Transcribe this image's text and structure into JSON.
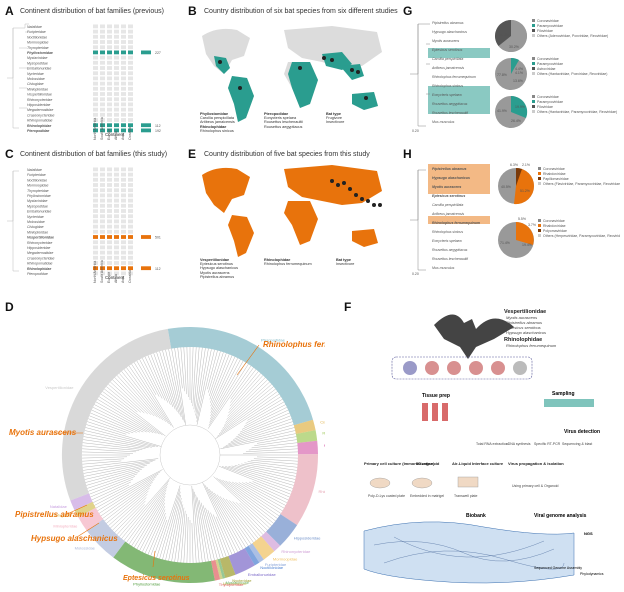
{
  "figure": {
    "panels": {
      "A": {
        "label": "A",
        "title": "Continent distribution of bat families (previous)"
      },
      "B": {
        "label": "B",
        "title": "Country distribution of six bat species from six different studies"
      },
      "C": {
        "label": "C",
        "title": "Continent distribution of bat families (this study)"
      },
      "E": {
        "label": "E",
        "title": "Country distribution of five bat species from this study"
      },
      "G": {
        "label": "G"
      },
      "H": {
        "label": "H"
      },
      "D": {
        "label": "D"
      },
      "F": {
        "label": "F"
      }
    },
    "panelA": {
      "families": [
        "Natalidae",
        "Furipteridae",
        "Noctilionidae",
        "Mormoopidae",
        "Thyropteridae",
        "Phyllostomidae",
        "Mystacinidae",
        "Myzopodidae",
        "Emballonuridae",
        "Nycteridae",
        "Molossidae",
        "Cistugidae",
        "Miniopteridae",
        "Vespertilionidae",
        "Rhinonycteridae",
        "Hipposideridae",
        "Megadermatidae",
        "Craseonycteridae",
        "Rhinopomatidae",
        "Rhinolophidae",
        "Pteropodidae"
      ],
      "highlight": [
        "Phyllostomidae",
        "Rhinolophidae",
        "Pteropodidae"
      ],
      "continents": [
        "North America",
        "South America",
        "Europe",
        "Africa",
        "Asia",
        "Oceania"
      ],
      "axis_label": "Continent",
      "count_label": "No. bat species",
      "counts": [
        "227",
        "112",
        "192"
      ]
    },
    "panelC": {
      "highlight": [
        "Vespertilionidae",
        "Rhinolophidae"
      ],
      "axis_label": "Continent",
      "count_label": "No. bat species",
      "counts": [
        "501",
        "112"
      ]
    },
    "panelB": {
      "legend": [
        {
          "family": "Phyllostomidae",
          "species": [
            "Carollia perspicillata",
            "Artibeus jamaicensis"
          ]
        },
        {
          "family": "Rhinolophidae",
          "species": [
            "Rhinolophus sinicus"
          ]
        },
        {
          "family": "Pteropodidae",
          "species": [
            "Eonycteris spelaea",
            "Rousettus leschenaultii",
            "Rousettus aegyptiacus"
          ]
        }
      ],
      "bat_type": "Bat type",
      "type_labels": [
        "Frugivore",
        "Insectivore"
      ],
      "color": "#2a9d8f"
    },
    "panelE": {
      "legend": [
        {
          "family": "Vespertilionidae",
          "species": [
            "Eptesicus serotinus",
            "Hypsugo alaschanicus",
            "Myotis aurascens",
            "Pipistrellus abramus"
          ]
        },
        {
          "family": "Rhinolophidae",
          "species": [
            "Rhinolophus ferrumequinum"
          ]
        }
      ],
      "bat_type": "Bat type",
      "type_labels": [
        "Insectivore"
      ],
      "color": "#e8730c"
    },
    "panelG": {
      "tree": [
        "Pipistrellus abramus",
        "Hypsugo alaschanicus",
        "Myotis aurascens",
        "Eptesicus serotinus",
        "Carollia perspicillata",
        "Artibeus jamaicensis",
        "Rhinolophus ferrumequinum",
        "Rhinolophus sinicus",
        "Eonycteris spelaea",
        "Rousettus aegyptiacus",
        "Rousettus leschenaultii",
        "Mus musculus"
      ],
      "scale": "0.20",
      "pies": [
        {
          "values": [
            "61.3%",
            "30.2%"
          ],
          "legend": [
            "Coronaviridae",
            "Paramyxoviridae",
            "Filoviridae",
            "Others (Adenoviridae, Poxviridae, Reoviridae)"
          ]
        },
        {
          "values": [
            "77.8%",
            "4.4%",
            "4.1%",
            "13.6%"
          ],
          "legend": [
            "Coronaviridae",
            "Paramyxoviridae",
            "Astroviridae",
            "Others (Hantaviridae, Poxviridae, Reoviridae)"
          ]
        },
        {
          "values": [
            "41.9%",
            "19.9%",
            "26.4%"
          ],
          "legend": [
            "Coronaviridae",
            "Paramyxoviridae",
            "Filoviridae",
            "Others (Hantaviridae, Paramyxoviridae, Reoviridae)"
          ]
        }
      ]
    },
    "panelH": {
      "highlight": [
        "Pipistrellus abramus",
        "Hypsugo alaschanicus",
        "Myotis aurascens",
        "Eptesicus serotinus",
        "Rhinolophus ferrumequinum"
      ],
      "scale": "0.20",
      "pies": [
        {
          "values": [
            "6.3%",
            "2.1%",
            "40.5%",
            "51.2%"
          ],
          "legend": [
            "Coronaviridae",
            "Rhabdoviridae",
            "Papillomaviridae",
            "Others (Flaviviridae, Paramyxoviridae, Reoviridae)"
          ]
        },
        {
          "values": [
            "5.5%",
            "3.7%",
            "71.4%",
            "19.4%"
          ],
          "legend": [
            "Coronaviridae",
            "Rhabdoviridae",
            "Polyomaviridae",
            "Others (Herpesviridae, Paramyxoviridae, Reoviridae)"
          ]
        }
      ]
    },
    "panelD": {
      "families": [
        "Pteropodidae",
        "Craseonycteridae",
        "Rhinopomatidae",
        "Megadermatidae",
        "Rhinolophidae",
        "Hipposideridae",
        "Rhinonycteridae",
        "Mormoopidae",
        "Furipteridae",
        "Noctilionidae",
        "Emballonuridae",
        "Nycteridae",
        "Mystacinidae",
        "Myzopodidae",
        "Thyropteridae",
        "Phyllostomidae",
        "Molossidae",
        "Miniopteridae",
        "Cistugidae",
        "Natalidae",
        "Vespertilionidae"
      ],
      "species": [
        "Rhinolophus ferrumequinum",
        "Myotis aurascens",
        "Pipistrellus abramus",
        "Hypsugo alaschanicus",
        "Eptesicus serotinus"
      ]
    },
    "panelF": {
      "families": [
        {
          "name": "Vespertilionidae",
          "species": [
            "Myotis aurascens",
            "Pipistrellus abramus",
            "Eptesicus serotinus",
            "Hypsugo alaschanicus"
          ]
        },
        {
          "name": "Rhinolophidae",
          "species": [
            "Rhinolophus ferrumequinum"
          ]
        }
      ],
      "steps": [
        "Tissue prep",
        "Sampling",
        "Virus detection",
        "Primary cell culture (Immortalization)",
        "3D organoid",
        "Air-Liquid Interface culture",
        "Virus propagation & isolation",
        "Viral genome analysis",
        "Biobank",
        "NGS",
        "Sequenced Genome Assembly",
        "Phylodynamics"
      ],
      "substeps": [
        "Poly-D-Lys coated plate",
        "Embedded in matrigel",
        "Transwell plate",
        "Using primary cell & Organoid",
        "Total RNA extraction",
        "cDNA synthesis",
        "Specific RT-PCR",
        "Sequencing & blast"
      ]
    }
  }
}
